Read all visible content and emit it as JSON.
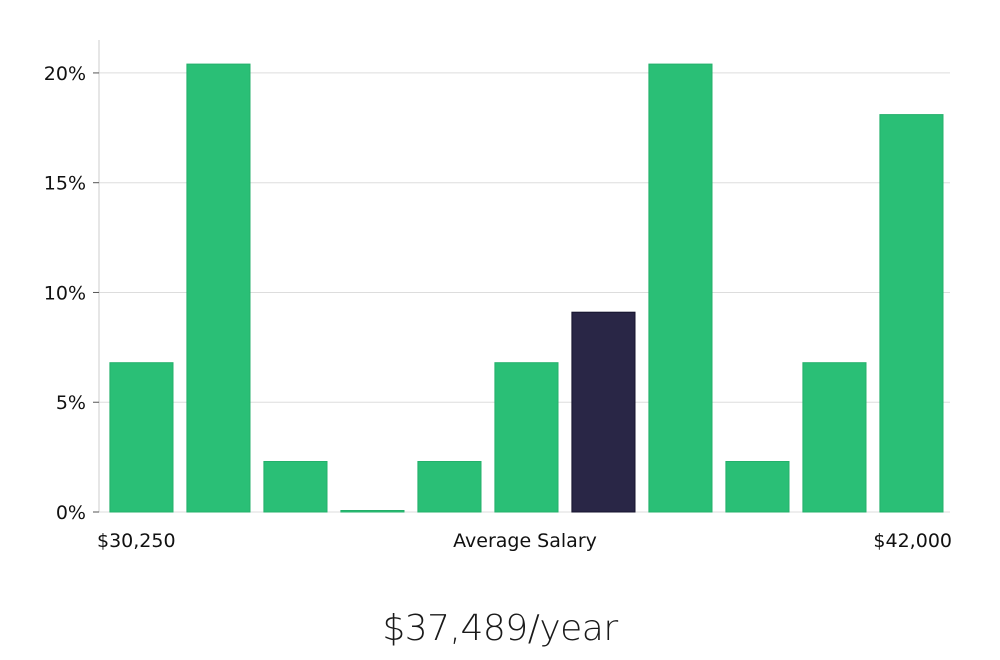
{
  "chart_data": {
    "type": "bar",
    "x_range_labels": {
      "min": "$30,250",
      "max": "$42,000"
    },
    "xlabel": "Average Salary",
    "ylabel": "",
    "ylim": [
      0,
      0.215
    ],
    "yticks": [
      0,
      0.05,
      0.1,
      0.15,
      0.2
    ],
    "ytick_labels": [
      "0%",
      "5%",
      "10%",
      "15%",
      "20%"
    ],
    "values": [
      0.068,
      0.204,
      0.023,
      0.0005,
      0.023,
      0.068,
      0.091,
      0.204,
      0.023,
      0.068,
      0.181
    ],
    "highlight_index": 6,
    "grid": true,
    "colors": {
      "bar": "#2abf76",
      "highlight": "#292646",
      "grid": "#dddddd",
      "axis": "#cccccc"
    }
  },
  "salary": {
    "value": "$37,489/year"
  }
}
